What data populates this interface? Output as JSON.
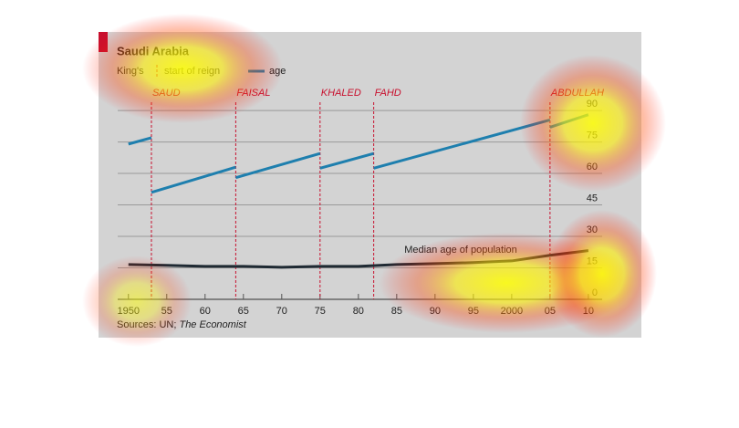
{
  "chart_data": {
    "type": "line",
    "title": "Saudi Arabia",
    "legend_title": "King's",
    "reign_label": "start of reign",
    "reign_color": "#c8102e",
    "source": [
      "Sources: UN; ",
      "The Economist"
    ],
    "xlim": [
      1948.6,
      2011.8
    ],
    "ylim": [
      0,
      97
    ],
    "xticks": [
      1950,
      {
        "value": 1955,
        "label": "55"
      },
      {
        "value": 1960,
        "label": "60"
      },
      {
        "value": 1965,
        "label": "65"
      },
      {
        "value": 1970,
        "label": "70"
      },
      {
        "value": 1975,
        "label": "75"
      },
      {
        "value": 1980,
        "label": "80"
      },
      {
        "value": 1985,
        "label": "85"
      },
      {
        "value": 1990,
        "label": "90"
      },
      {
        "value": 1995,
        "label": "95"
      },
      2000,
      {
        "value": 2005,
        "label": "05"
      },
      {
        "value": 2010,
        "label": "10"
      }
    ],
    "yticks": [
      0,
      15,
      30,
      45,
      60,
      75,
      90
    ],
    "grid": true,
    "reigns": [
      {
        "label": "SAUD",
        "year": 1953
      },
      {
        "label": "FAISAL",
        "year": 1964
      },
      {
        "label": "KHALED",
        "year": 1975
      },
      {
        "label": "FAHD",
        "year": 1982
      },
      {
        "label": "ABDULLAH",
        "year": 2005
      }
    ],
    "series": [
      {
        "name": "age",
        "color": "#1e7fae",
        "segments": [
          {
            "x": [
              1950,
              1953
            ],
            "values": [
              74,
              77
            ]
          },
          {
            "x": [
              1953,
              1964
            ],
            "values": [
              51,
              63
            ]
          },
          {
            "x": [
              1964,
              1975
            ],
            "values": [
              58,
              69.5
            ]
          },
          {
            "x": [
              1975,
              1982
            ],
            "values": [
              62.5,
              69.5
            ]
          },
          {
            "x": [
              1982,
              2005
            ],
            "values": [
              62.5,
              85.5
            ]
          },
          {
            "x": [
              2005,
              2010
            ],
            "values": [
              82,
              88
            ]
          }
        ]
      },
      {
        "name": "Median age of population",
        "color": "#1f2a33",
        "x": [
          1950,
          1955,
          1960,
          1965,
          1970,
          1975,
          1980,
          1985,
          1990,
          1995,
          2000,
          2005,
          2010
        ],
        "values": [
          16.6,
          16.2,
          15.7,
          15.7,
          15.3,
          15.7,
          15.7,
          16.6,
          17,
          17.5,
          18.3,
          21,
          23.2
        ]
      }
    ]
  }
}
